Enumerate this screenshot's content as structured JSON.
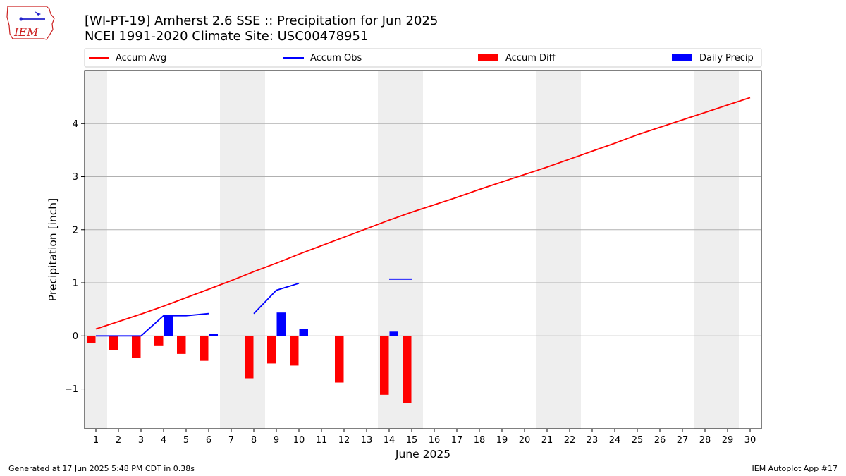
{
  "logo": {
    "text": "IEM"
  },
  "title": {
    "line1": "[WI-PT-19] Amherst 2.6 SSE :: Precipitation for Jun 2025",
    "line2": "NCEI 1991-2020 Climate Site: USC00478951"
  },
  "footer": {
    "left": "Generated at 17 Jun 2025 5:48 PM CDT in 0.38s",
    "right": "IEM Autoplot App #17"
  },
  "colors": {
    "avg": "#ff0000",
    "obs": "#0000ff",
    "diff": "#ff0000",
    "daily": "#0000ff",
    "weekend_band": "#eeeeee",
    "grid": "#b0b0b0"
  },
  "chart_data": {
    "type": "line",
    "xlabel": "June 2025",
    "ylabel": "Precipitation [inch]",
    "xlim": [
      0.5,
      30.5
    ],
    "ylim": [
      -1.75,
      5.0
    ],
    "x_ticks": [
      1,
      2,
      3,
      4,
      5,
      6,
      7,
      8,
      9,
      10,
      11,
      12,
      13,
      14,
      15,
      16,
      17,
      18,
      19,
      20,
      21,
      22,
      23,
      24,
      25,
      26,
      27,
      28,
      29,
      30
    ],
    "y_ticks": [
      -1,
      0,
      1,
      2,
      3,
      4
    ],
    "y_tick_labels": [
      "−1",
      "0",
      "1",
      "2",
      "3",
      "4"
    ],
    "grid": "horizontal",
    "legend_placement": "top, above plot",
    "weekend_spans": [
      [
        0.5,
        1.5
      ],
      [
        6.5,
        8.5
      ],
      [
        13.5,
        15.5
      ],
      [
        20.5,
        22.5
      ],
      [
        27.5,
        29.5
      ]
    ],
    "legend": [
      {
        "label": "Accum Avg",
        "kind": "line",
        "color": "#ff0000"
      },
      {
        "label": "Accum Obs",
        "kind": "line",
        "color": "#0000ff"
      },
      {
        "label": "Accum Diff",
        "kind": "bar",
        "color": "#ff0000"
      },
      {
        "label": "Daily Precip",
        "kind": "bar",
        "color": "#0000ff"
      }
    ],
    "series": [
      {
        "name": "Accum Avg",
        "type": "line",
        "x": [
          1,
          2,
          3,
          4,
          5,
          6,
          7,
          8,
          9,
          10,
          11,
          12,
          13,
          14,
          15,
          16,
          17,
          18,
          19,
          20,
          21,
          22,
          23,
          24,
          25,
          26,
          27,
          28,
          29,
          30
        ],
        "values": [
          0.13,
          0.27,
          0.41,
          0.56,
          0.72,
          0.88,
          1.04,
          1.21,
          1.37,
          1.54,
          1.7,
          1.86,
          2.02,
          2.18,
          2.33,
          2.47,
          2.61,
          2.76,
          2.9,
          3.04,
          3.18,
          3.33,
          3.48,
          3.63,
          3.79,
          3.93,
          4.07,
          4.21,
          4.35,
          4.49
        ]
      },
      {
        "name": "Accum Obs",
        "type": "line",
        "x": [
          1,
          2,
          3,
          4,
          5,
          6,
          7,
          8,
          9,
          10,
          11,
          12,
          13,
          14,
          15,
          16,
          17,
          18,
          19,
          20,
          21,
          22,
          23,
          24,
          25,
          26,
          27,
          28,
          29,
          30
        ],
        "values": [
          0.0,
          0.0,
          0.0,
          0.38,
          0.38,
          0.42,
          null,
          0.42,
          0.86,
          0.99,
          null,
          null,
          null,
          1.07,
          1.07,
          null,
          null,
          null,
          null,
          null,
          null,
          null,
          null,
          null,
          null,
          null,
          null,
          null,
          null,
          null
        ]
      },
      {
        "name": "Accum Diff",
        "type": "bar",
        "x": [
          1,
          2,
          3,
          4,
          5,
          6,
          8,
          9,
          10,
          12,
          14,
          15
        ],
        "values": [
          -0.13,
          -0.27,
          -0.41,
          -0.18,
          -0.34,
          -0.47,
          -0.8,
          -0.52,
          -0.56,
          -0.88,
          -1.11,
          -1.26
        ]
      },
      {
        "name": "Daily Precip",
        "type": "bar",
        "x": [
          4,
          6,
          9,
          10,
          14
        ],
        "values": [
          0.38,
          0.04,
          0.44,
          0.13,
          0.08
        ]
      }
    ]
  }
}
